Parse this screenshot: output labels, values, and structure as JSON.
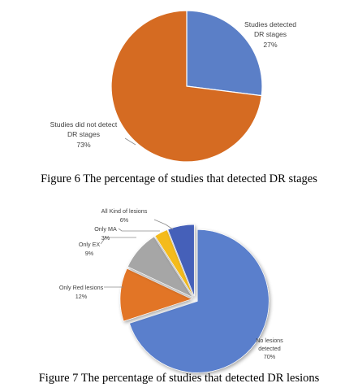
{
  "chart_data": [
    {
      "type": "pie",
      "categories": [
        "Studies detected DR stages",
        "Studies did not detect DR stages"
      ],
      "values": [
        27,
        73
      ],
      "data_labels": [
        {
          "line1": "Studies detected",
          "line2": "DR stages",
          "pct": "27%"
        },
        {
          "line1": "Studies did not detect",
          "line2": "DR stages",
          "pct": "73%"
        }
      ],
      "colors": [
        "#5b7fc7",
        "#d56b22"
      ],
      "caption": "Figure 6 The percentage of studies that detected DR stages"
    },
    {
      "type": "pie",
      "categories": [
        "No lesions detected",
        "Only Red lesions",
        "Only EX",
        "Only MA",
        "All Kind of lesions"
      ],
      "values": [
        70,
        12,
        9,
        3,
        6
      ],
      "data_labels": [
        {
          "line1": "No lesions",
          "line2": "detected",
          "pct": "70%"
        },
        {
          "line1": "Only Red lesions",
          "line2": "",
          "pct": "12%"
        },
        {
          "line1": "Only EX",
          "line2": "",
          "pct": "9%"
        },
        {
          "line1": "Only MA",
          "line2": "",
          "pct": "3%"
        },
        {
          "line1": "All Kind of lesions",
          "line2": "",
          "pct": "6%"
        }
      ],
      "colors": [
        "#5a7fcc",
        "#e27427",
        "#a6a6a6",
        "#f4bb1a",
        "#4560b9"
      ],
      "caption": "Figure 7 The percentage of studies that detected DR lesions"
    }
  ]
}
